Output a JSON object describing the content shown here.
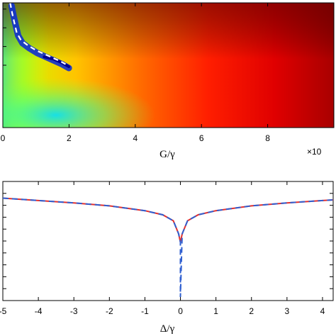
{
  "chart_data": [
    {
      "type": "heatmap",
      "xlabel": "G/γ",
      "x_scale_label": "×10",
      "xlim": [
        0,
        10
      ],
      "x_ticks": [
        "0",
        "2",
        "4",
        "6",
        "8"
      ],
      "x_tick_values": [
        0,
        2,
        4,
        6,
        8
      ],
      "ylim": [
        -5,
        5
      ],
      "y_tick_values": [
        0,
        1.5,
        3,
        4.5
      ],
      "colormap": "jet",
      "overlay_dashed_curve": {
        "color": "#ffffff",
        "x": [
          0.22,
          0.28,
          0.35,
          0.42,
          0.55,
          0.75,
          1.0,
          1.25,
          1.5,
          1.75,
          1.95
        ],
        "y": [
          5.0,
          4.2,
          3.4,
          2.6,
          2.0,
          1.6,
          1.2,
          0.9,
          0.6,
          0.3,
          0.0
        ]
      },
      "valley_min_x": 2.0
    },
    {
      "type": "line",
      "xlabel": "Δ/γ",
      "xlim": [
        -5,
        4.3
      ],
      "x_ticks": [
        "-5",
        "-4",
        "-3",
        "-2",
        "-1",
        "0",
        "1",
        "2",
        "3",
        "4"
      ],
      "x_tick_values": [
        -5,
        -4,
        -3,
        -2,
        -1,
        0,
        1,
        2,
        3,
        4
      ],
      "ylim": [
        0,
        10
      ],
      "y_tick_values": [
        1,
        2,
        3,
        4,
        5,
        6,
        7,
        8,
        9
      ],
      "series": [
        {
          "style": "solid",
          "color": "#e03030",
          "x": [
            -5,
            -4,
            -3,
            -2,
            -1,
            -0.5,
            -0.2,
            -0.05,
            0,
            0.05,
            0.2,
            0.5,
            1,
            2,
            3,
            4,
            4.3
          ],
          "y": [
            8.6,
            8.4,
            8.2,
            7.95,
            7.55,
            7.2,
            6.7,
            5.6,
            4.9,
            5.6,
            6.7,
            7.2,
            7.55,
            7.95,
            8.2,
            8.4,
            8.45
          ]
        },
        {
          "style": "dashed",
          "color": "#2f5fd0",
          "x": [
            -5,
            -4,
            -3,
            -2,
            -1,
            -0.5,
            -0.2,
            -0.05,
            0,
            0,
            0.05,
            0.2,
            0.5,
            1,
            2,
            3,
            4,
            4.3
          ],
          "y": [
            8.6,
            8.4,
            8.2,
            7.95,
            7.55,
            7.2,
            6.7,
            5.6,
            4.9,
            0.3,
            5.6,
            6.7,
            7.2,
            7.55,
            7.95,
            8.2,
            8.4,
            8.45
          ]
        }
      ]
    }
  ]
}
